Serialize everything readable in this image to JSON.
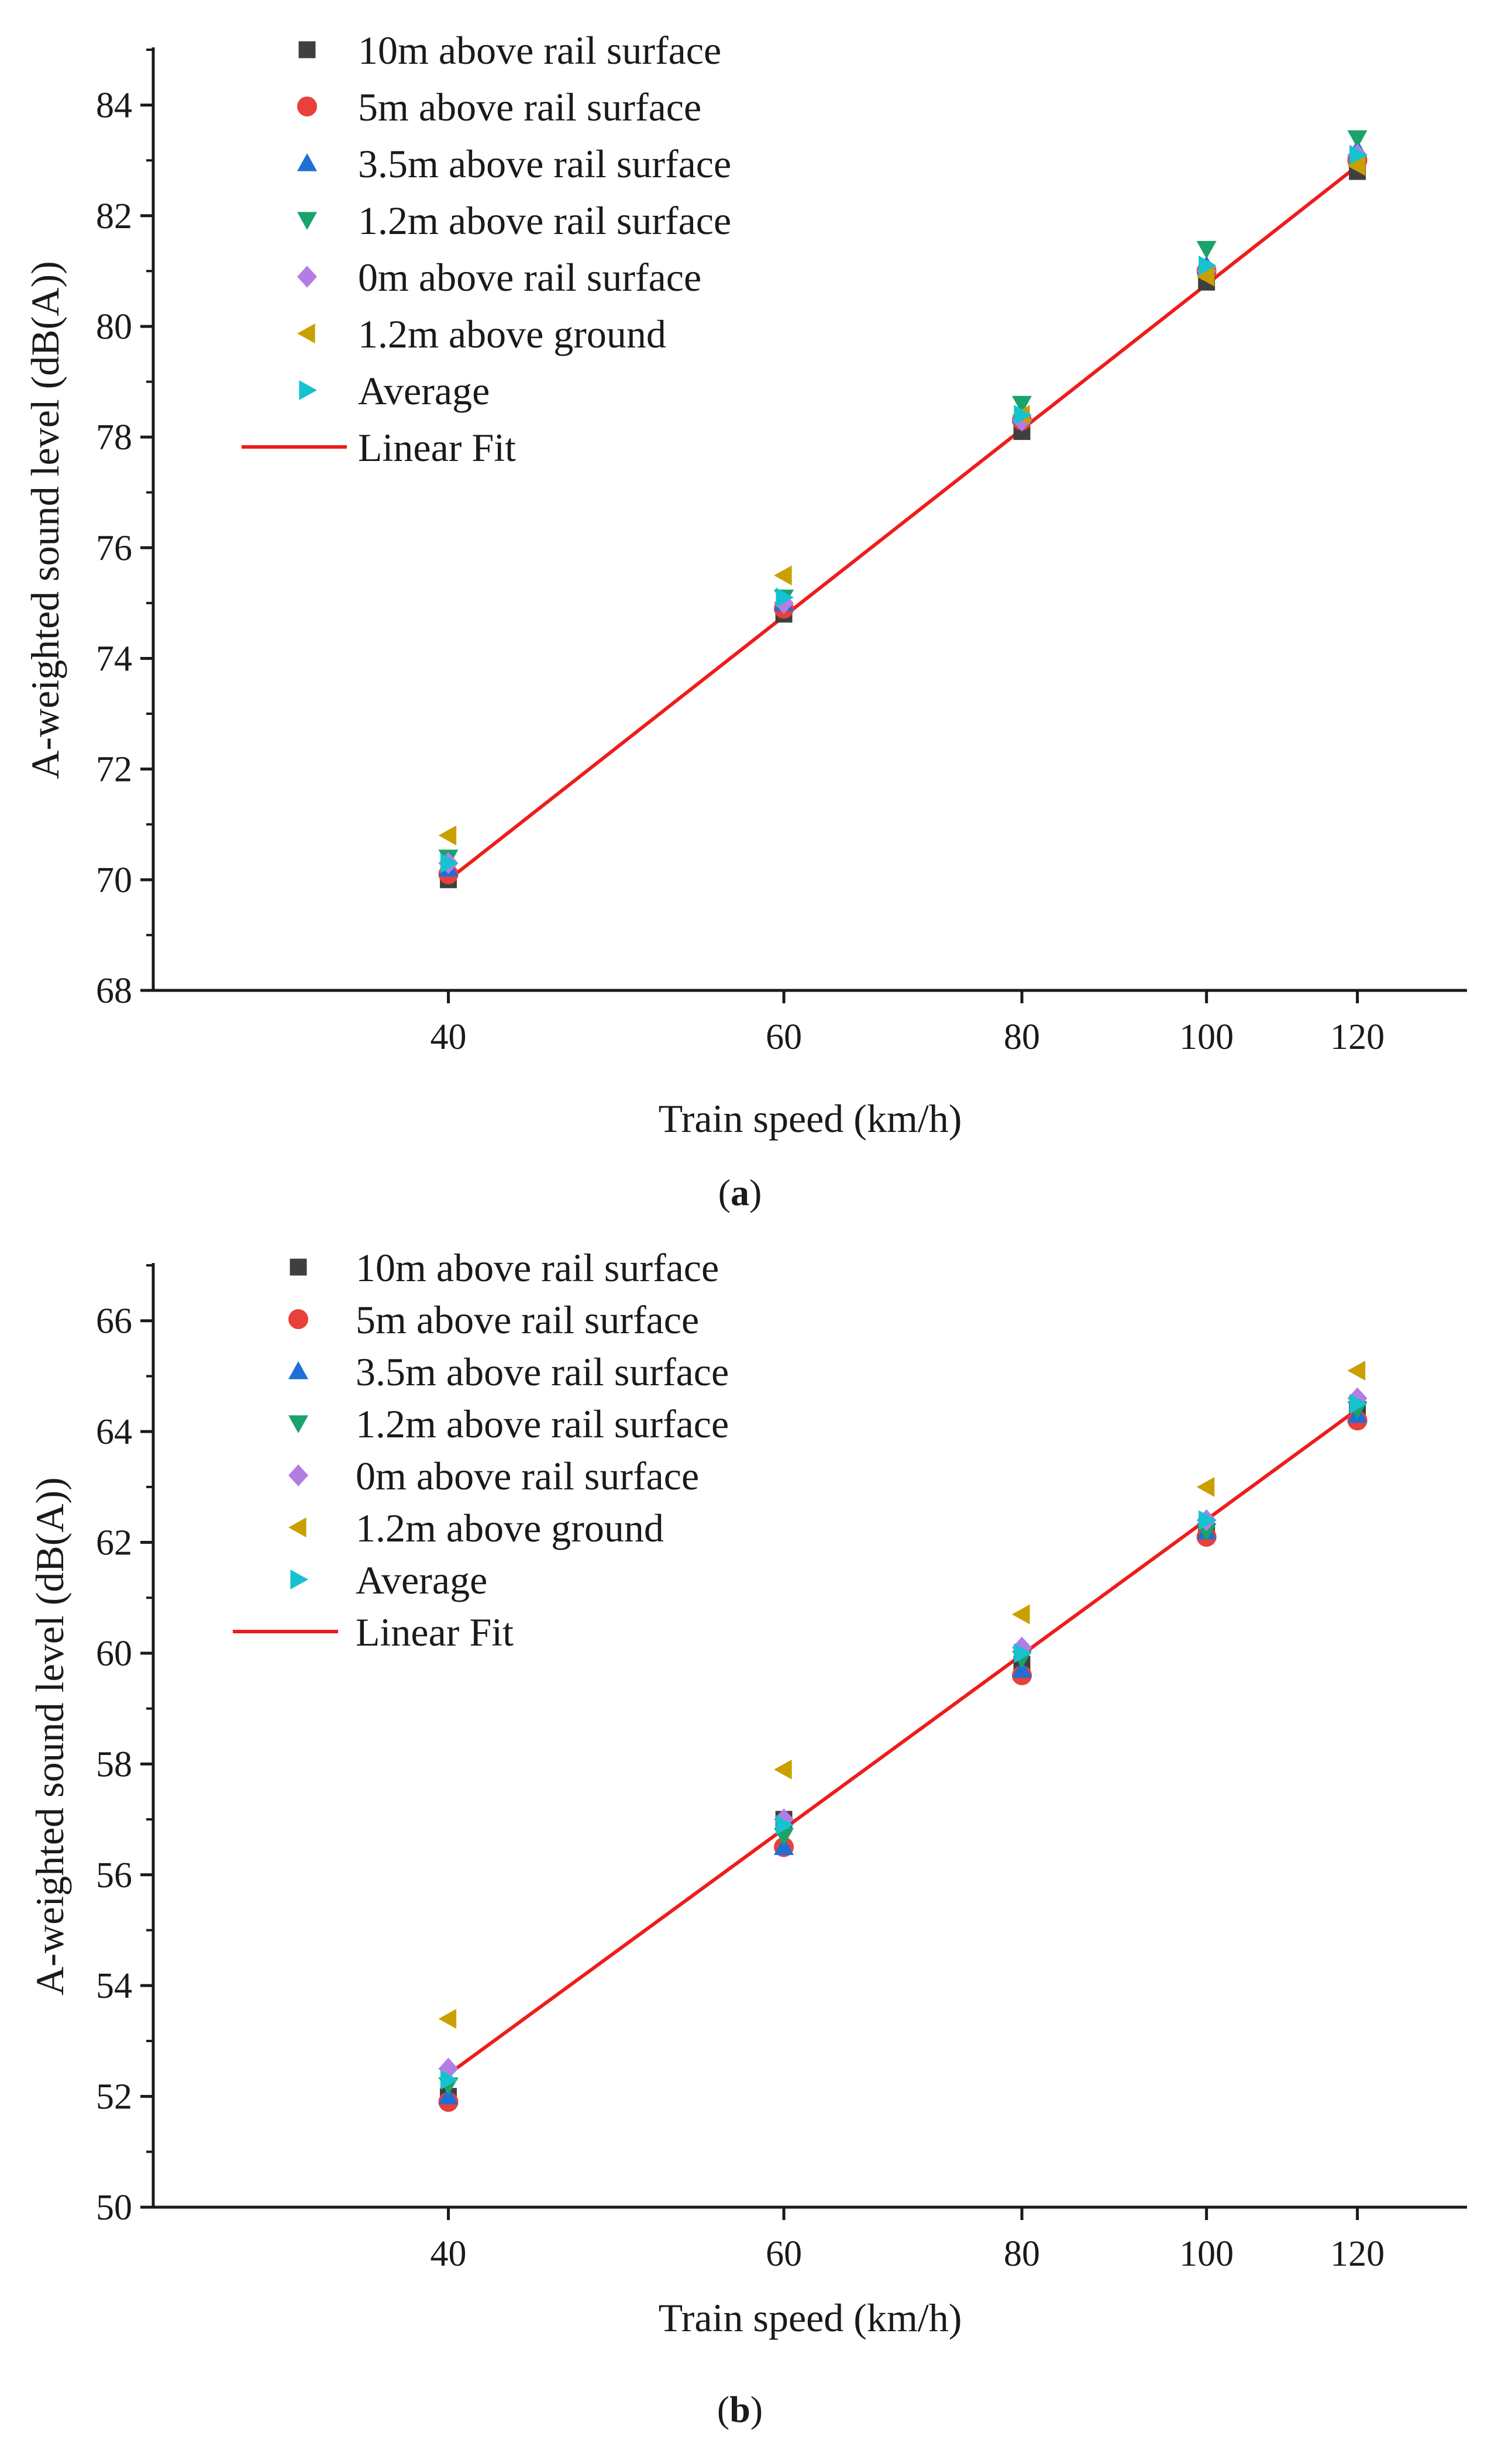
{
  "chart_data": [
    {
      "type": "scatter",
      "panel_label": "a",
      "xlabel": "Train speed (km/h)",
      "ylabel": "A-weighted sound level (dB(A))",
      "xscale": "log",
      "xlim": [
        28,
        137
      ],
      "ylim": [
        68,
        85
      ],
      "xticks": [
        40,
        60,
        80,
        100,
        120
      ],
      "yticks": [
        68,
        70,
        72,
        74,
        76,
        78,
        80,
        82,
        84
      ],
      "x": [
        40,
        60,
        80,
        100,
        120
      ],
      "series": [
        {
          "name": "10m above rail surface",
          "marker": "square",
          "color": "#3f3f3f",
          "values": [
            70.0,
            74.8,
            78.1,
            80.8,
            82.8
          ]
        },
        {
          "name": "5m above rail surface",
          "marker": "circle",
          "color": "#e8403a",
          "values": [
            70.1,
            74.9,
            78.3,
            81.0,
            83.0
          ]
        },
        {
          "name": "3.5m above rail surface",
          "marker": "triangle-up",
          "color": "#1f6fd6",
          "values": [
            70.2,
            75.0,
            78.4,
            81.1,
            83.2
          ]
        },
        {
          "name": "1.2m above rail surface",
          "marker": "triangle-down",
          "color": "#1aa36a",
          "values": [
            70.4,
            75.1,
            78.6,
            81.4,
            83.4
          ]
        },
        {
          "name": "0m above rail surface",
          "marker": "diamond",
          "color": "#b27ee6",
          "values": [
            70.3,
            75.0,
            78.3,
            81.0,
            83.1
          ]
        },
        {
          "name": "1.2m above ground",
          "marker": "triangle-left",
          "color": "#c9a000",
          "values": [
            70.8,
            75.5,
            78.4,
            80.9,
            82.9
          ]
        },
        {
          "name": "Average",
          "marker": "triangle-right",
          "color": "#16c2cf",
          "values": [
            70.3,
            75.1,
            78.4,
            81.1,
            83.1
          ]
        }
      ],
      "fit": {
        "name": "Linear Fit",
        "color": "#ee1c1c",
        "x": [
          40,
          120
        ],
        "y": [
          70.0,
          82.9
        ]
      }
    },
    {
      "type": "scatter",
      "panel_label": "b",
      "xlabel": "Train speed (km/h)",
      "ylabel": "A-weighted sound level (dB(A))",
      "xscale": "log",
      "xlim": [
        28,
        137
      ],
      "ylim": [
        50,
        67
      ],
      "xticks": [
        40,
        60,
        80,
        100,
        120
      ],
      "yticks": [
        50,
        52,
        54,
        56,
        58,
        60,
        62,
        64,
        66
      ],
      "x": [
        40,
        60,
        80,
        100,
        120
      ],
      "series": [
        {
          "name": "10m above rail surface",
          "marker": "square",
          "color": "#3f3f3f",
          "values": [
            52.0,
            57.0,
            59.8,
            62.2,
            64.4
          ]
        },
        {
          "name": "5m above rail surface",
          "marker": "circle",
          "color": "#e8403a",
          "values": [
            51.9,
            56.5,
            59.6,
            62.1,
            64.2
          ]
        },
        {
          "name": "3.5m above rail surface",
          "marker": "triangle-up",
          "color": "#1f6fd6",
          "values": [
            52.0,
            56.5,
            59.7,
            62.2,
            64.3
          ]
        },
        {
          "name": "1.2m above rail surface",
          "marker": "triangle-down",
          "color": "#1aa36a",
          "values": [
            52.2,
            56.7,
            59.9,
            62.2,
            64.4
          ]
        },
        {
          "name": "0m above rail surface",
          "marker": "diamond",
          "color": "#b27ee6",
          "values": [
            52.5,
            57.0,
            60.1,
            62.4,
            64.6
          ]
        },
        {
          "name": "1.2m above ground",
          "marker": "triangle-left",
          "color": "#c9a000",
          "values": [
            53.4,
            57.9,
            60.7,
            63.0,
            65.1
          ]
        },
        {
          "name": "Average",
          "marker": "triangle-right",
          "color": "#16c2cf",
          "values": [
            52.3,
            56.9,
            60.0,
            62.4,
            64.5
          ]
        }
      ],
      "fit": {
        "name": "Linear Fit",
        "color": "#ee1c1c",
        "x": [
          40,
          120
        ],
        "y": [
          52.4,
          64.4
        ]
      }
    }
  ]
}
